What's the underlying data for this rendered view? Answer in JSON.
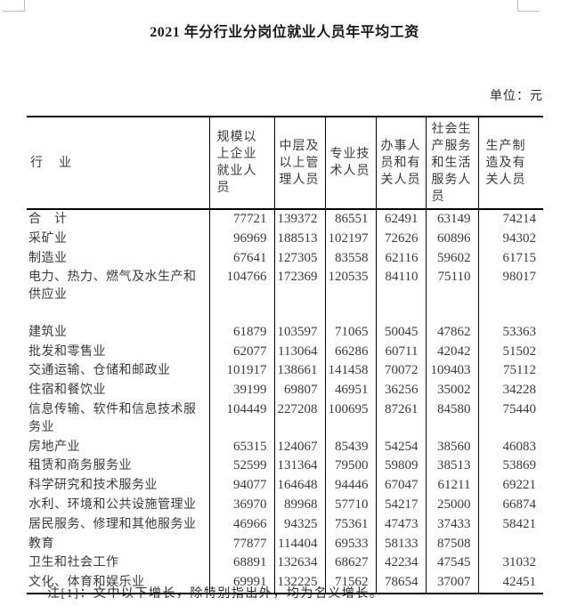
{
  "page": {
    "title": "2021 年分行业分岗位就业人员年平均工资",
    "unit_label": "单位：元",
    "footnote": "注[1]：文中以下增长，除特别指出外，均为名义增长。"
  },
  "table": {
    "industry_header": "行　业",
    "columns": [
      "规模以上企业就业人员",
      "中层及以上管理人员",
      "专业技术人员",
      "办事人员和有关人员",
      "社会生产服务和生活服务人员",
      "生产制造及有关人员"
    ],
    "rows": [
      {
        "name": "合　计",
        "values": [
          "77721",
          "139372",
          "86551",
          "62491",
          "63149",
          "74214"
        ]
      },
      {
        "name": "采矿业",
        "values": [
          "96969",
          "188513",
          "102197",
          "72626",
          "60896",
          "94302"
        ]
      },
      {
        "name": "制造业",
        "values": [
          "67641",
          "127305",
          "83558",
          "62116",
          "59602",
          "61715"
        ]
      },
      {
        "name": "电力、热力、燃气及水生产和供应业",
        "tall": true,
        "values": [
          "104766",
          "172369",
          "120535",
          "84110",
          "75110",
          "98017"
        ]
      },
      {
        "name": "建筑业",
        "values": [
          "61879",
          "103597",
          "71065",
          "50045",
          "47862",
          "53363"
        ]
      },
      {
        "name": "批发和零售业",
        "values": [
          "62077",
          "113064",
          "66286",
          "60711",
          "42042",
          "51502"
        ]
      },
      {
        "name": "交通运输、仓储和邮政业",
        "values": [
          "101917",
          "138661",
          "141458",
          "70072",
          "109403",
          "75112"
        ]
      },
      {
        "name": "住宿和餐饮业",
        "values": [
          "39199",
          "69807",
          "46951",
          "36256",
          "35002",
          "34228"
        ]
      },
      {
        "name": "信息传输、软件和信息技术服务业",
        "values": [
          "104449",
          "227208",
          "100695",
          "87261",
          "84580",
          "75440"
        ]
      },
      {
        "name": "房地产业",
        "values": [
          "65315",
          "124067",
          "85439",
          "54254",
          "38560",
          "46083"
        ]
      },
      {
        "name": "租赁和商务服务业",
        "values": [
          "52599",
          "131364",
          "79500",
          "59809",
          "38513",
          "53869"
        ]
      },
      {
        "name": "科学研究和技术服务业",
        "values": [
          "94077",
          "164648",
          "94446",
          "67047",
          "61211",
          "69221"
        ]
      },
      {
        "name": "水利、环境和公共设施管理业",
        "values": [
          "36970",
          "89968",
          "57710",
          "54217",
          "25000",
          "66874"
        ]
      },
      {
        "name": "居民服务、修理和其他服务业",
        "values": [
          "46966",
          "94325",
          "75361",
          "47473",
          "37433",
          "58421"
        ]
      },
      {
        "name": "教育",
        "values": [
          "77877",
          "114404",
          "69533",
          "58133",
          "87508",
          ""
        ]
      },
      {
        "name": "卫生和社会工作",
        "values": [
          "68891",
          "132634",
          "68627",
          "42234",
          "47545",
          "31032"
        ]
      },
      {
        "name": "文化、体育和娱乐业",
        "values": [
          "69991",
          "132225",
          "71562",
          "78654",
          "37007",
          "42451"
        ]
      }
    ]
  }
}
